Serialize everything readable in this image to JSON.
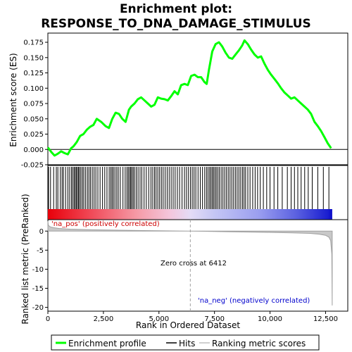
{
  "title_line1": "Enrichment plot:",
  "title_line2": "RESPONSE_TO_DNA_DAMAGE_STIMULUS",
  "colors": {
    "profile": "#00ff00",
    "hits": "#000000",
    "metric": "#a0a0a0",
    "pos_label": "#cc0000",
    "neg_label": "#0000cc",
    "zero_line": "#a0a0a0"
  },
  "chart_data": [
    {
      "type": "line",
      "name": "enrichment-profile",
      "ylabel": "Enrichment score (ES)",
      "xlim": [
        0,
        13500
      ],
      "ylim": [
        -0.025,
        0.19
      ],
      "yticks": [
        -0.025,
        0.0,
        0.025,
        0.05,
        0.075,
        0.1,
        0.125,
        0.15,
        0.175
      ],
      "ytick_labels": [
        "-0.025",
        "0.000",
        "0.025",
        "0.050",
        "0.075",
        "0.100",
        "0.125",
        "0.150",
        "0.175"
      ],
      "x": [
        0,
        150,
        300,
        450,
        600,
        750,
        900,
        1050,
        1150,
        1300,
        1450,
        1600,
        1750,
        1900,
        2050,
        2200,
        2400,
        2600,
        2750,
        2900,
        3050,
        3200,
        3350,
        3500,
        3650,
        3750,
        3900,
        4050,
        4200,
        4350,
        4500,
        4650,
        4800,
        4950,
        5100,
        5250,
        5400,
        5550,
        5700,
        5850,
        6000,
        6150,
        6300,
        6450,
        6600,
        6750,
        6900,
        7050,
        7150,
        7250,
        7400,
        7550,
        7700,
        7850,
        8000,
        8150,
        8300,
        8450,
        8600,
        8750,
        8850,
        9000,
        9150,
        9300,
        9450,
        9600,
        9750,
        9900,
        10050,
        10200,
        10350,
        10500,
        10650,
        10800,
        10950,
        11100,
        11250,
        11400,
        11550,
        11700,
        11850,
        12000,
        12150,
        12300,
        12450,
        12600,
        12750
      ],
      "y": [
        0.003,
        -0.004,
        -0.01,
        -0.007,
        -0.003,
        -0.006,
        -0.008,
        0.002,
        0.005,
        0.012,
        0.022,
        0.025,
        0.032,
        0.037,
        0.04,
        0.05,
        0.045,
        0.038,
        0.035,
        0.05,
        0.06,
        0.058,
        0.05,
        0.045,
        0.065,
        0.07,
        0.075,
        0.082,
        0.085,
        0.08,
        0.075,
        0.07,
        0.073,
        0.085,
        0.083,
        0.082,
        0.08,
        0.087,
        0.095,
        0.09,
        0.105,
        0.107,
        0.105,
        0.12,
        0.122,
        0.118,
        0.118,
        0.11,
        0.107,
        0.13,
        0.16,
        0.172,
        0.175,
        0.168,
        0.158,
        0.15,
        0.148,
        0.155,
        0.162,
        0.17,
        0.178,
        0.172,
        0.163,
        0.155,
        0.15,
        0.152,
        0.14,
        0.13,
        0.122,
        0.115,
        0.108,
        0.1,
        0.093,
        0.088,
        0.083,
        0.085,
        0.08,
        0.075,
        0.07,
        0.065,
        0.058,
        0.045,
        0.038,
        0.03,
        0.02,
        0.01,
        0.002
      ]
    },
    {
      "type": "scatter",
      "name": "hits",
      "x": [
        30,
        120,
        260,
        380,
        450,
        560,
        640,
        700,
        800,
        900,
        980,
        1060,
        1120,
        1180,
        1230,
        1280,
        1330,
        1380,
        1430,
        1490,
        1560,
        1620,
        1700,
        1780,
        1850,
        1920,
        2000,
        2080,
        2160,
        2250,
        2350,
        2460,
        2560,
        2660,
        2760,
        2830,
        2890,
        2950,
        3020,
        3100,
        3170,
        3260,
        3380,
        3480,
        3560,
        3620,
        3680,
        3730,
        3780,
        3840,
        3900,
        3980,
        4060,
        4150,
        4230,
        4330,
        4430,
        4540,
        4640,
        4720,
        4800,
        4870,
        4950,
        5030,
        5110,
        5190,
        5280,
        5370,
        5460,
        5550,
        5640,
        5730,
        5830,
        5930,
        6040,
        6150,
        6240,
        6330,
        6420,
        6500,
        6580,
        6660,
        6760,
        6860,
        6960,
        7060,
        7140,
        7210,
        7280,
        7340,
        7400,
        7460,
        7520,
        7580,
        7650,
        7720,
        7800,
        7880,
        7960,
        8040,
        8120,
        8200,
        8280,
        8360,
        8440,
        8520,
        8600,
        8680,
        8760,
        8830,
        8900,
        9000,
        9100,
        9220,
        9330,
        9440,
        9560,
        9700,
        9850,
        10000,
        10180,
        10350,
        10550,
        10780,
        10950,
        11100,
        11250,
        11400,
        11560,
        11720,
        11900,
        12150,
        12400,
        12650
      ]
    },
    {
      "type": "heatmap",
      "name": "rank-bar",
      "x_range": [
        0,
        12800
      ],
      "zero_cross": 6412,
      "stops": [
        {
          "x": 0,
          "color": "#e8000a"
        },
        {
          "x": 2000,
          "color": "#f04c5a"
        },
        {
          "x": 4000,
          "color": "#f59aa6"
        },
        {
          "x": 5500,
          "color": "#f4c6dc"
        },
        {
          "x": 6412,
          "color": "#e4dcf6"
        },
        {
          "x": 7500,
          "color": "#c4c6f4"
        },
        {
          "x": 9500,
          "color": "#9a9ef0"
        },
        {
          "x": 11200,
          "color": "#5a60e0"
        },
        {
          "x": 12600,
          "color": "#1a1ed0"
        },
        {
          "x": 12800,
          "color": "#0a0ac8"
        }
      ]
    },
    {
      "type": "area",
      "name": "ranked-metric",
      "xlabel": "Rank in Ordered Dataset",
      "ylabel": "Ranked list metric (PreRanked)",
      "xlim": [
        0,
        13500
      ],
      "ylim": [
        -21,
        3
      ],
      "xticks": [
        0,
        2500,
        5000,
        7500,
        10000,
        12500
      ],
      "xtick_labels": [
        "0",
        "2,500",
        "5,000",
        "7,500",
        "10,000",
        "12,500"
      ],
      "yticks": [
        0,
        -5,
        -10,
        -15,
        -20
      ],
      "ytick_labels": [
        "0",
        "-5",
        "-10",
        "-15",
        "-20"
      ],
      "x": [
        0,
        20,
        60,
        120,
        250,
        500,
        1000,
        2000,
        3000,
        4000,
        5000,
        6000,
        6412,
        7000,
        8000,
        9000,
        10000,
        11000,
        11800,
        12200,
        12500,
        12650,
        12730,
        12780,
        12800
      ],
      "y": [
        2.6,
        1.6,
        1.3,
        1.1,
        0.9,
        0.7,
        0.5,
        0.35,
        0.25,
        0.15,
        0.08,
        0.02,
        0.0,
        -0.05,
        -0.15,
        -0.25,
        -0.35,
        -0.45,
        -0.6,
        -0.8,
        -1.1,
        -1.6,
        -2.5,
        -6.0,
        -19.5
      ]
    }
  ],
  "annotations": {
    "pos": "'na_pos' (positively correlated)",
    "zero": "Zero cross at 6412",
    "neg": "'na_neg' (negatively correlated)"
  },
  "legend": {
    "profile": "Enrichment profile",
    "hits": "Hits",
    "metric": "Ranking metric scores"
  }
}
